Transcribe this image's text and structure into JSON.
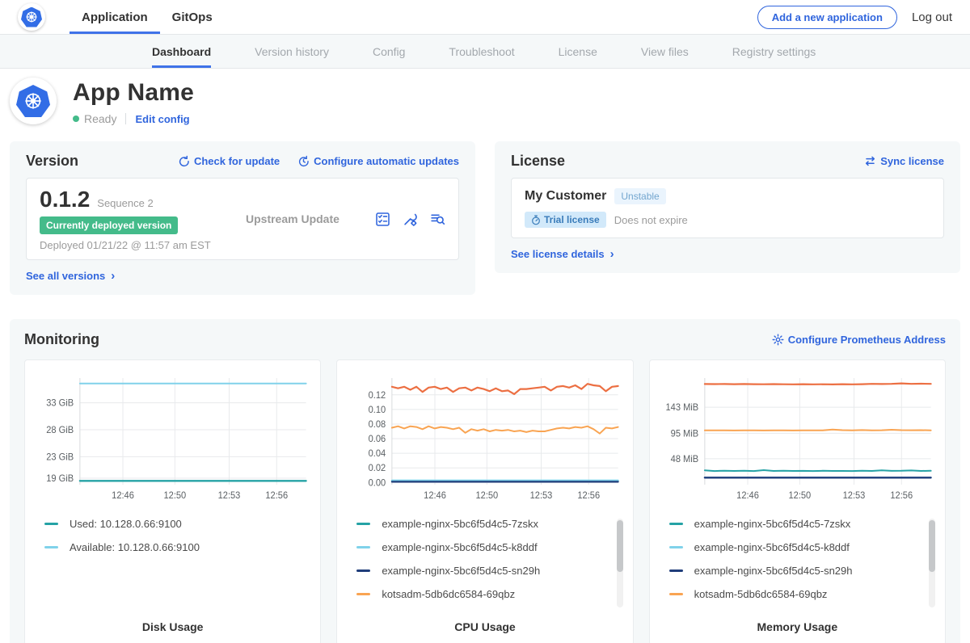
{
  "ui": {
    "chevron": "›"
  },
  "top_nav": {
    "tabs": [
      {
        "label": "Application",
        "active": true
      },
      {
        "label": "GitOps",
        "active": false
      }
    ],
    "add_application_button": "Add a new application",
    "logout": "Log out"
  },
  "sub_nav": {
    "tabs": [
      {
        "label": "Dashboard",
        "active": true
      },
      {
        "label": "Version history",
        "active": false
      },
      {
        "label": "Config",
        "active": false
      },
      {
        "label": "Troubleshoot",
        "active": false
      },
      {
        "label": "License",
        "active": false
      },
      {
        "label": "View files",
        "active": false
      },
      {
        "label": "Registry settings",
        "active": false
      }
    ]
  },
  "app_header": {
    "name": "App Name",
    "status": "Ready",
    "edit_config": "Edit config"
  },
  "version_card": {
    "title": "Version",
    "check_for_update": "Check for update",
    "configure_auto_updates": "Configure automatic updates",
    "version_number": "0.1.2",
    "sequence": "Sequence 2",
    "deployed_badge": "Currently deployed version",
    "deployed_at": "Deployed 01/21/22 @ 11:57 am EST",
    "update_type": "Upstream Update",
    "see_all": "See all versions"
  },
  "license_card": {
    "title": "License",
    "sync": "Sync license",
    "customer": "My Customer",
    "channel_badge": "Unstable",
    "type_badge": "Trial license",
    "expiry": "Does not expire",
    "see_details": "See license details"
  },
  "monitoring": {
    "title": "Monitoring",
    "configure_link": "Configure Prometheus Address"
  },
  "chart_data": [
    {
      "type": "line",
      "title": "Disk Usage",
      "ylim": [
        17.8,
        37.6
      ],
      "yticks": [
        {
          "label": "33 GiB",
          "value": 33
        },
        {
          "label": "28 GiB",
          "value": 28
        },
        {
          "label": "23 GiB",
          "value": 23
        },
        {
          "label": "19 GiB",
          "value": 19
        }
      ],
      "xticks": [
        {
          "label": "12:46",
          "pos": 0.19
        },
        {
          "label": "12:50",
          "pos": 0.42
        },
        {
          "label": "12:53",
          "pos": 0.66
        },
        {
          "label": "12:56",
          "pos": 0.87
        }
      ],
      "series": [
        {
          "name": "Used: 10.128.0.66:9100",
          "color": "#25a2a5",
          "width": 2.4,
          "values": [
            18.5,
            18.5
          ]
        },
        {
          "name": "Available: 10.128.0.66:9100",
          "color": "#80d2ea",
          "width": 2,
          "values": [
            36.6,
            36.6
          ]
        }
      ],
      "legend_scrollbar": false
    },
    {
      "type": "line",
      "title": "CPU Usage",
      "ylim": [
        -0.003,
        0.143
      ],
      "yticks": [
        {
          "label": "0.12",
          "value": 0.12
        },
        {
          "label": "0.10",
          "value": 0.1
        },
        {
          "label": "0.08",
          "value": 0.08
        },
        {
          "label": "0.06",
          "value": 0.06
        },
        {
          "label": "0.04",
          "value": 0.04
        },
        {
          "label": "0.02",
          "value": 0.02
        },
        {
          "label": "0.00",
          "value": 0.0
        }
      ],
      "xticks": [
        {
          "label": "12:46",
          "pos": 0.19
        },
        {
          "label": "12:50",
          "pos": 0.42
        },
        {
          "label": "12:53",
          "pos": 0.66
        },
        {
          "label": "12:56",
          "pos": 0.87
        }
      ],
      "series": [
        {
          "name": "example-nginx-5bc6f5d4c5-7zskx",
          "color": "#25a2a5",
          "width": 2.2,
          "values": [
            0.002,
            0.002
          ]
        },
        {
          "name": "example-nginx-5bc6f5d4c5-k8ddf",
          "color": "#80d2ea",
          "width": 2,
          "values": [
            0.003,
            0.003
          ]
        },
        {
          "name": "example-nginx-5bc6f5d4c5-sn29h",
          "color": "#1f3d7a",
          "width": 2.2,
          "values": [
            0.001,
            0.001
          ]
        },
        {
          "name": "kotsadm-5db6dc6584-69qbz",
          "color": "#f9a452",
          "width": 2,
          "values": [
            0.075,
            0.077,
            0.074,
            0.077,
            0.076,
            0.073,
            0.077,
            0.074,
            0.076,
            0.075,
            0.073,
            0.075,
            0.068,
            0.073,
            0.071,
            0.073,
            0.07,
            0.072,
            0.071,
            0.072,
            0.07,
            0.071,
            0.069,
            0.071,
            0.07,
            0.07,
            0.072,
            0.074,
            0.075,
            0.074,
            0.076,
            0.075,
            0.077,
            0.073,
            0.067,
            0.075,
            0.074,
            0.076
          ]
        },
        {
          "name": "",
          "color": "#ec6f42",
          "width": 2.2,
          "values": [
            0.131,
            0.129,
            0.131,
            0.127,
            0.131,
            0.124,
            0.13,
            0.131,
            0.128,
            0.13,
            0.124,
            0.129,
            0.13,
            0.126,
            0.13,
            0.128,
            0.125,
            0.129,
            0.125,
            0.126,
            0.121,
            0.128,
            0.128,
            0.129,
            0.13,
            0.131,
            0.126,
            0.131,
            0.132,
            0.13,
            0.133,
            0.128,
            0.135,
            0.133,
            0.132,
            0.125,
            0.131,
            0.132
          ]
        }
      ],
      "legend_scrollbar": true
    },
    {
      "type": "line",
      "title": "Memory Usage",
      "ylim": [
        0,
        197
      ],
      "yticks": [
        {
          "label": "143 MiB",
          "value": 143
        },
        {
          "label": "95 MiB",
          "value": 95
        },
        {
          "label": "48 MiB",
          "value": 48
        }
      ],
      "xticks": [
        {
          "label": "12:46",
          "pos": 0.19
        },
        {
          "label": "12:50",
          "pos": 0.42
        },
        {
          "label": "12:53",
          "pos": 0.66
        },
        {
          "label": "12:56",
          "pos": 0.87
        }
      ],
      "series": [
        {
          "name": "example-nginx-5bc6f5d4c5-7zskx",
          "color": "#25a2a5",
          "width": 2,
          "values": [
            26.5,
            25.2,
            25.8,
            25.3,
            25.6,
            25.2,
            26.8,
            25.4,
            25.6,
            25.3,
            25.5,
            25.2,
            25.6,
            25.3,
            25.4,
            25.2,
            25.8,
            25.3,
            26.4,
            25.5,
            25.6,
            26.2,
            25.4,
            25.6
          ]
        },
        {
          "name": "example-nginx-5bc6f5d4c5-k8ddf",
          "color": "#80d2ea",
          "width": 2,
          "values": [
            13.5,
            13.5
          ]
        },
        {
          "name": "example-nginx-5bc6f5d4c5-sn29h",
          "color": "#1f3d7a",
          "width": 2.4,
          "values": [
            13,
            13
          ]
        },
        {
          "name": "kotsadm-5db6dc6584-69qbz",
          "color": "#f9a452",
          "width": 2,
          "values": [
            100.5,
            100.3,
            100.4,
            100.2,
            100.4,
            100.3,
            100.2,
            100.4,
            100.3,
            100.2,
            100.5,
            100.3,
            100.4,
            101.8,
            100.8,
            100.5,
            100.9,
            100.4,
            100.6,
            101.5,
            100.8,
            100.6,
            100.7,
            100.5
          ]
        },
        {
          "name": "",
          "color": "#ec6f42",
          "width": 2.2,
          "values": [
            186,
            185.8,
            186,
            185.6,
            185.9,
            185.7,
            185.5,
            185.8,
            185.5,
            185.4,
            185.6,
            185.3,
            185.5,
            185.2,
            185.6,
            185.4,
            185.7,
            186.3,
            185.9,
            186.2,
            187.2,
            186.3,
            186.5,
            186.2
          ]
        }
      ],
      "legend_scrollbar": true
    }
  ]
}
